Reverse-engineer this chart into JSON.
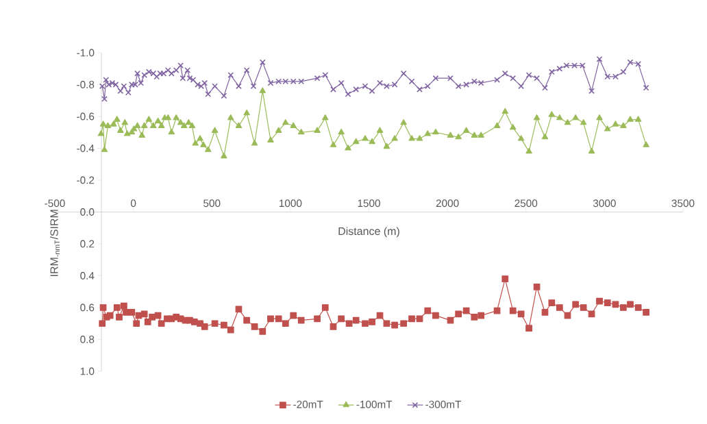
{
  "chart_data": {
    "type": "line",
    "xlabel": "Distance (m)",
    "ylabel": "IRM$_{-nmT}$/SIRM",
    "xlim": [
      -500,
      3500
    ],
    "xticks": [
      -500,
      0,
      500,
      1000,
      1500,
      2000,
      2500,
      3000,
      3500
    ],
    "ylim": [
      1,
      -1
    ],
    "yticks": [
      {
        "value": -1,
        "label": "-1.0"
      },
      {
        "value": -0.8,
        "label": "-0.8"
      },
      {
        "value": -0.6,
        "label": "-0.6"
      },
      {
        "value": -0.4,
        "label": "-0.4"
      },
      {
        "value": -0.2,
        "label": "-0.2"
      },
      {
        "value": 0,
        "label": "0.0"
      },
      {
        "value": 0.2,
        "label": "0.2"
      },
      {
        "value": 0.4,
        "label": "0.4"
      },
      {
        "value": 0.6,
        "label": "0.6"
      },
      {
        "value": 0.8,
        "label": "0.8"
      },
      {
        "value": 1,
        "label": "1.0"
      }
    ],
    "grid": false,
    "legend": "bottom",
    "series": [
      {
        "name": "-20mT",
        "color": "#c0504d",
        "marker": "square",
        "x": [
          -198,
          -192,
          -170,
          -148,
          -104,
          -90,
          -60,
          -46,
          -10,
          20,
          34,
          70,
          92,
          120,
          157,
          179,
          215,
          243,
          273,
          301,
          331,
          359,
          389,
          425,
          454,
          519,
          577,
          620,
          671,
          722,
          772,
          823,
          874,
          925,
          969,
          1019,
          1069,
          1171,
          1222,
          1273,
          1324,
          1374,
          1418,
          1476,
          1520,
          1570,
          1613,
          1664,
          1721,
          1773,
          1823,
          1874,
          1925,
          2019,
          2070,
          2120,
          2171,
          2214,
          2316,
          2367,
          2417,
          2469,
          2519,
          2569,
          2621,
          2664,
          2714,
          2765,
          2816,
          2866,
          2918,
          2968,
          3019,
          3070,
          3120,
          3164,
          3215,
          3265
        ],
        "values": [
          0.7,
          0.6,
          0.66,
          0.65,
          0.6,
          0.66,
          0.59,
          0.63,
          0.63,
          0.7,
          0.65,
          0.64,
          0.69,
          0.66,
          0.65,
          0.7,
          0.67,
          0.67,
          0.66,
          0.67,
          0.68,
          0.68,
          0.69,
          0.7,
          0.72,
          0.7,
          0.71,
          0.74,
          0.61,
          0.68,
          0.72,
          0.75,
          0.67,
          0.67,
          0.7,
          0.65,
          0.68,
          0.67,
          0.6,
          0.72,
          0.67,
          0.7,
          0.68,
          0.7,
          0.69,
          0.65,
          0.7,
          0.71,
          0.7,
          0.67,
          0.67,
          0.62,
          0.65,
          0.68,
          0.64,
          0.62,
          0.66,
          0.65,
          0.62,
          0.42,
          0.62,
          0.64,
          0.73,
          0.47,
          0.63,
          0.57,
          0.6,
          0.65,
          0.58,
          0.6,
          0.64,
          0.56,
          0.57,
          0.58,
          0.6,
          0.58,
          0.6,
          0.63
        ]
      },
      {
        "name": "-100mT",
        "color": "#9bbb59",
        "marker": "triangle",
        "x": [
          -206,
          -192,
          -184,
          -162,
          -126,
          -104,
          -82,
          -54,
          -39,
          -10,
          4,
          26,
          55,
          70,
          99,
          127,
          157,
          179,
          200,
          221,
          243,
          273,
          301,
          323,
          352,
          374,
          395,
          425,
          446,
          476,
          519,
          577,
          620,
          671,
          722,
          772,
          823,
          874,
          925,
          969,
          1019,
          1069,
          1171,
          1222,
          1273,
          1324,
          1367,
          1418,
          1476,
          1520,
          1570,
          1613,
          1664,
          1721,
          1773,
          1823,
          1874,
          1925,
          2019,
          2070,
          2120,
          2171,
          2214,
          2316,
          2367,
          2417,
          2469,
          2519,
          2569,
          2621,
          2664,
          2714,
          2765,
          2816,
          2866,
          2918,
          2968,
          3019,
          3070,
          3120,
          3164,
          3215,
          3265
        ],
        "values": [
          -0.49,
          -0.55,
          -0.39,
          -0.54,
          -0.55,
          -0.58,
          -0.51,
          -0.56,
          -0.49,
          -0.5,
          -0.52,
          -0.54,
          -0.48,
          -0.54,
          -0.58,
          -0.54,
          -0.57,
          -0.54,
          -0.59,
          -0.59,
          -0.5,
          -0.59,
          -0.56,
          -0.54,
          -0.56,
          -0.54,
          -0.43,
          -0.46,
          -0.42,
          -0.39,
          -0.51,
          -0.35,
          -0.59,
          -0.54,
          -0.62,
          -0.43,
          -0.76,
          -0.45,
          -0.51,
          -0.56,
          -0.54,
          -0.5,
          -0.51,
          -0.59,
          -0.42,
          -0.5,
          -0.4,
          -0.44,
          -0.46,
          -0.44,
          -0.51,
          -0.41,
          -0.46,
          -0.56,
          -0.46,
          -0.46,
          -0.49,
          -0.5,
          -0.48,
          -0.47,
          -0.51,
          -0.48,
          -0.48,
          -0.54,
          -0.63,
          -0.53,
          -0.46,
          -0.38,
          -0.59,
          -0.47,
          -0.61,
          -0.59,
          -0.56,
          -0.59,
          -0.56,
          -0.38,
          -0.59,
          -0.52,
          -0.55,
          -0.54,
          -0.58,
          -0.58,
          -0.42
        ]
      },
      {
        "name": "-300mT",
        "color": "#8064a2",
        "marker": "cross",
        "x": [
          -198,
          -184,
          -174,
          -156,
          -134,
          -112,
          -82,
          -60,
          -32,
          -10,
          12,
          26,
          48,
          70,
          99,
          127,
          149,
          171,
          193,
          221,
          243,
          273,
          301,
          315,
          345,
          359,
          381,
          410,
          432,
          454,
          476,
          519,
          577,
          620,
          671,
          722,
          765,
          823,
          874,
          925,
          969,
          1019,
          1069,
          1171,
          1222,
          1273,
          1324,
          1367,
          1418,
          1476,
          1520,
          1570,
          1613,
          1664,
          1721,
          1773,
          1823,
          1874,
          1925,
          2019,
          2070,
          2120,
          2171,
          2214,
          2316,
          2367,
          2417,
          2469,
          2519,
          2569,
          2621,
          2664,
          2714,
          2758,
          2809,
          2860,
          2918,
          2968,
          3019,
          3070,
          3120,
          3164,
          3215,
          3265
        ],
        "values": [
          -0.79,
          -0.71,
          -0.83,
          -0.8,
          -0.81,
          -0.8,
          -0.76,
          -0.79,
          -0.75,
          -0.8,
          -0.8,
          -0.87,
          -0.81,
          -0.86,
          -0.88,
          -0.87,
          -0.85,
          -0.87,
          -0.87,
          -0.89,
          -0.87,
          -0.89,
          -0.92,
          -0.84,
          -0.89,
          -0.84,
          -0.83,
          -0.8,
          -0.79,
          -0.81,
          -0.74,
          -0.79,
          -0.73,
          -0.86,
          -0.79,
          -0.89,
          -0.79,
          -0.94,
          -0.81,
          -0.82,
          -0.82,
          -0.82,
          -0.82,
          -0.84,
          -0.86,
          -0.77,
          -0.81,
          -0.74,
          -0.77,
          -0.79,
          -0.76,
          -0.81,
          -0.79,
          -0.8,
          -0.87,
          -0.82,
          -0.77,
          -0.79,
          -0.84,
          -0.84,
          -0.79,
          -0.8,
          -0.82,
          -0.81,
          -0.83,
          -0.87,
          -0.84,
          -0.79,
          -0.86,
          -0.84,
          -0.78,
          -0.88,
          -0.9,
          -0.92,
          -0.92,
          -0.92,
          -0.76,
          -0.96,
          -0.85,
          -0.85,
          -0.88,
          -0.94,
          -0.93,
          -0.78
        ]
      }
    ]
  }
}
